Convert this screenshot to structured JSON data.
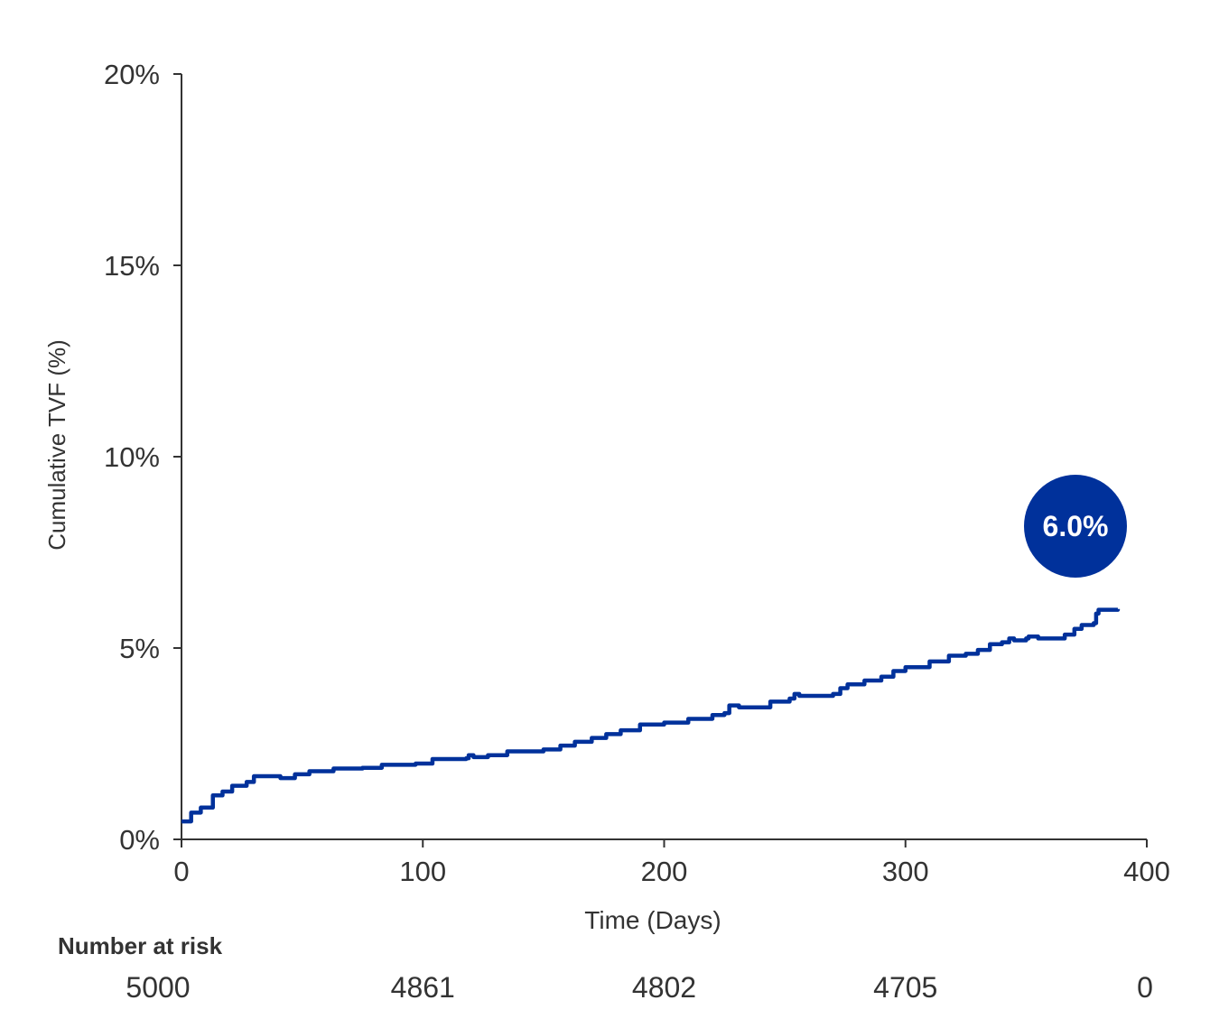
{
  "chart_data": {
    "type": "line",
    "title": "",
    "xlabel": "Time (Days)",
    "ylabel": "Cumulative TVF (%)",
    "xlim": [
      0,
      400
    ],
    "ylim": [
      0,
      20
    ],
    "x_ticks": [
      0,
      100,
      200,
      300,
      400
    ],
    "x_tick_labels": [
      "0",
      "100",
      "200",
      "300",
      "400"
    ],
    "y_ticks": [
      0,
      5,
      10,
      15,
      20
    ],
    "y_tick_labels": [
      "0%",
      "5%",
      "10%",
      "15%",
      "20%"
    ],
    "grid": false,
    "step": true,
    "series": [
      {
        "name": "Cumulative TVF",
        "color": "#00319b",
        "x": [
          0,
          3,
          4,
          7,
          8,
          13,
          16,
          17,
          20,
          21,
          26,
          27,
          29,
          30,
          40,
          41,
          46,
          47,
          52,
          53,
          63,
          75,
          83,
          97,
          104,
          118,
          119,
          121,
          127,
          135,
          150,
          157,
          163,
          170,
          176,
          182,
          190,
          200,
          210,
          220,
          225,
          227,
          230,
          231,
          240,
          244,
          252,
          254,
          256,
          270,
          273,
          276,
          283,
          290,
          295,
          300,
          310,
          318,
          325,
          330,
          335,
          340,
          343,
          345,
          350,
          351,
          355,
          363,
          366,
          370,
          373,
          378,
          379,
          380,
          388
        ],
        "y": [
          0.47,
          0.47,
          0.7,
          0.7,
          0.83,
          1.15,
          1.15,
          1.25,
          1.25,
          1.4,
          1.4,
          1.5,
          1.5,
          1.65,
          1.65,
          1.6,
          1.6,
          1.7,
          1.7,
          1.78,
          1.85,
          1.87,
          1.95,
          1.98,
          2.1,
          2.12,
          2.2,
          2.15,
          2.2,
          2.3,
          2.35,
          2.45,
          2.55,
          2.65,
          2.75,
          2.85,
          3.0,
          3.05,
          3.15,
          3.25,
          3.3,
          3.5,
          3.5,
          3.45,
          3.45,
          3.6,
          3.68,
          3.8,
          3.75,
          3.8,
          3.95,
          4.05,
          4.15,
          4.25,
          4.4,
          4.5,
          4.65,
          4.8,
          4.85,
          4.95,
          5.1,
          5.15,
          5.25,
          5.2,
          5.25,
          5.3,
          5.25,
          5.25,
          5.35,
          5.5,
          5.6,
          5.65,
          5.9,
          6.0,
          6.02
        ]
      }
    ],
    "annotations": [
      {
        "text": "6.0%",
        "color": "#00319b"
      }
    ],
    "number_at_risk": {
      "title": "Number at risk",
      "days": [
        0,
        100,
        200,
        300,
        400
      ],
      "values": [
        "5000",
        "4861",
        "4802",
        "4705",
        "0"
      ]
    }
  }
}
